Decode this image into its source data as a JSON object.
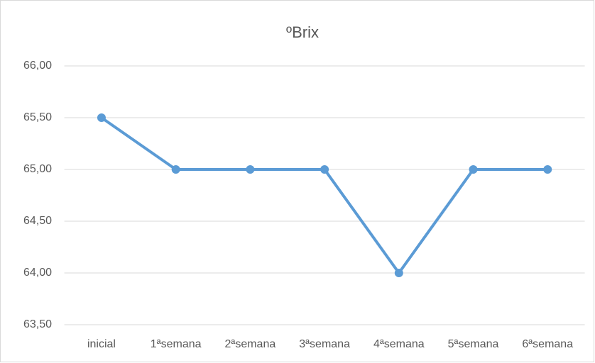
{
  "chart_data": {
    "type": "line",
    "title": "ºBrix",
    "categories": [
      "inicial",
      "1ªsemana",
      "2ªsemana",
      "3ªsemana",
      "4ªsemana",
      "5ªsemana",
      "6ªsemana"
    ],
    "series": [
      {
        "color": "#5b9bd5",
        "values": [
          65.5,
          65,
          65,
          65,
          64,
          65,
          65
        ]
      }
    ],
    "ylim": [
      63.5,
      66
    ],
    "yticks": [
      {
        "value": 63.5,
        "label": "63,50"
      },
      {
        "value": 64,
        "label": "64,00"
      },
      {
        "value": 64.5,
        "label": "64,50"
      },
      {
        "value": 65,
        "label": "65,00"
      },
      {
        "value": 65.5,
        "label": "65,50"
      },
      {
        "value": 66,
        "label": "66,00"
      }
    ],
    "grid": true
  }
}
